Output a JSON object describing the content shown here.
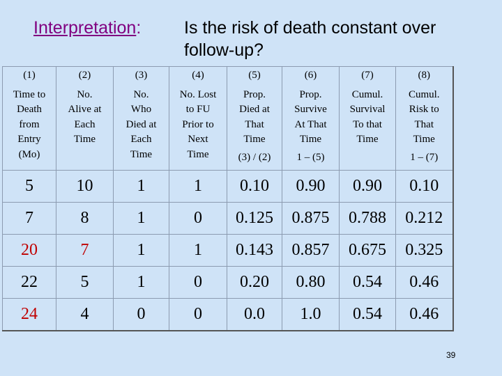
{
  "title": {
    "key": "Interpretation",
    "colon": ":",
    "question_line1": "Is the risk of death constant over",
    "question_line2": "follow-up?"
  },
  "table": {
    "headers": [
      {
        "num": "(1)",
        "lines": [
          "Time to",
          "Death",
          "from",
          "Entry",
          "(Mo)"
        ],
        "formula": ""
      },
      {
        "num": "(2)",
        "lines": [
          "No.",
          "Alive at",
          "Each",
          "Time"
        ],
        "formula": ""
      },
      {
        "num": "(3)",
        "lines": [
          "No.",
          "Who",
          "Died at",
          "Each",
          "Time"
        ],
        "formula": ""
      },
      {
        "num": "(4)",
        "lines": [
          "No. Lost",
          "to FU",
          "Prior to",
          "Next",
          "Time"
        ],
        "formula": ""
      },
      {
        "num": "(5)",
        "lines": [
          "Prop.",
          "Died at",
          "That",
          "Time"
        ],
        "formula": "(3) / (2)"
      },
      {
        "num": "(6)",
        "lines": [
          "Prop.",
          "Survive",
          "At That",
          "Time"
        ],
        "formula": "1 – (5)"
      },
      {
        "num": "(7)",
        "lines": [
          "Cumul.",
          "Survival",
          "To that",
          "Time"
        ],
        "formula": ""
      },
      {
        "num": "(8)",
        "lines": [
          "Cumul.",
          "Risk to",
          "That",
          "Time"
        ],
        "formula": "1 – (7)"
      }
    ],
    "rows": [
      [
        "5",
        "10",
        "1",
        "1",
        "0.10",
        "0.90",
        "0.90",
        "0.10"
      ],
      [
        "7",
        "8",
        "1",
        "0",
        "0.125",
        "0.875",
        "0.788",
        "0.212"
      ],
      [
        "20",
        "7",
        "1",
        "1",
        "0.143",
        "0.857",
        "0.675",
        "0.325"
      ],
      [
        "22",
        "5",
        "1",
        "0",
        "0.20",
        "0.80",
        "0.54",
        "0.46"
      ],
      [
        "24",
        "4",
        "0",
        "0",
        "0.0",
        "1.0",
        "0.54",
        "0.46"
      ]
    ],
    "highlight_color": "#c00000"
  },
  "page_number": "39"
}
